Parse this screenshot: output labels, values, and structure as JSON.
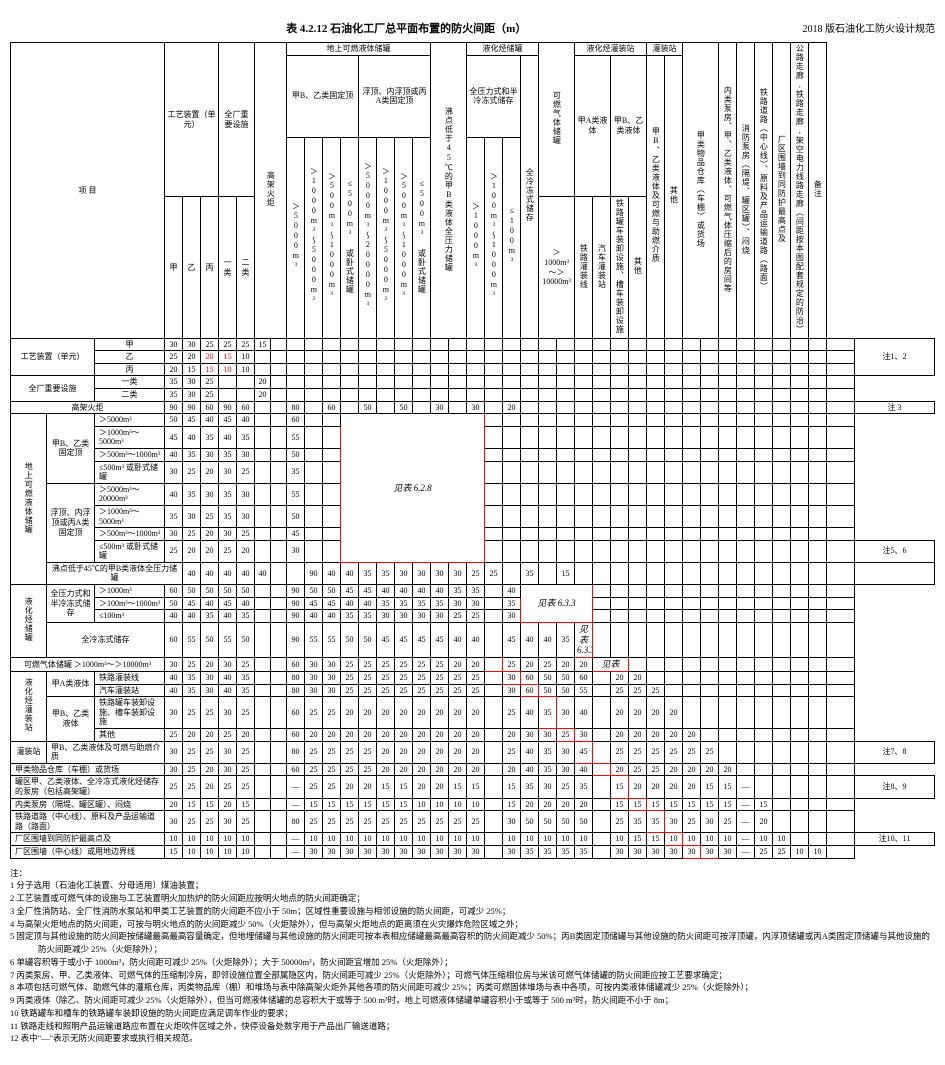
{
  "title": "表 4.2.12  石油化工厂总平面布置的防火间距（m）",
  "subtitle": "2018 版石油化工防火设计规范",
  "header": {
    "item": "项    目",
    "process_unit": "工艺装置（单元）",
    "important_facility": "全厂重要设施",
    "above_tank": "地上可燃液体储罐",
    "fixed_roof": "甲B、乙类固定顶",
    "float_roof": "浮顶、内浮顶或丙A类固定顶",
    "boil_tank": "沸点低于45℃的甲B类液体全压力储罐",
    "lpg_tank": "液化烃储罐",
    "full_pressure": "全压力式和半冷冻式储存",
    "full_refrig": "全冷冻式储存",
    "gas_tank": "可燃气体储罐",
    "lpg_bay": "液化烃灌装站",
    "loading": "灌装站",
    "rail_road": "通用铁路（中心线）",
    "boundary": "厂区围墙（中心线）或用地边界线",
    "cat_a": "甲",
    "cat_b": "乙",
    "cat_c": "丙",
    "cat_1": "一类",
    "cat_2": "二类",
    "gt5000": "＞5000m³",
    "r1000_5000": "＞1000m³～5000m³",
    "r500_1000": "＞500m³～1000m³",
    "le500s": "≤500m³ 或卧式储罐",
    "r5000_20000": "＞5000m³～20000m³",
    "r1000_5000b": "＞1000m³～5000m³",
    "r500_1000b": "＞500m³～1000m³",
    "le500sb": "≤500m³ 或卧式储罐",
    "gt1000": "＞1000m³",
    "r100_1000": "＞100m³～1000m³",
    "le100": "≤100m³",
    "gt10000": "＞1000m³～＞10000m³",
    "fill_a": "甲A类液体",
    "fill_b": "甲B、乙类液体",
    "rail_fill": "铁路灌装线",
    "car_fill": "汽车灌装站",
    "rail_fac": "铁路罐车装卸设施、槽车装卸设施",
    "other": "其他",
    "product_wh": "甲、乙类物品库房、丙类液体罐车装卸设施等",
    "class_wh": "甲类物品仓库（车棚）或货场",
    "tank_area": "罐区甲、乙类液体、全冷冻式液化烃储存的泵房（包括高架罐）",
    "fire_stn": "消防泵房（隔堤、罐区罐）、闷烧",
    "rail_center": "铁路道路（中心线）、原料及产品运输道路（路面）",
    "road_center": "厂区围墙到同防护最高点及",
    "notes_col": "备注",
    "note_12": "注1、2",
    "note_3": "注 3",
    "note_56": "注5、6",
    "note_78": "注7、8",
    "note_89": "注8、9",
    "note_1011": "注10、11",
    "lane_hw": "公路走廊,铁路走廊,架空电力线路走廊（间距按本图配套规定的防治）",
    "internal": "内类泵房、甲、乙类液体、可燃气体压缩后的房间等",
    "flare": "高架火炬",
    "ref_628": "见表 6.2.8",
    "ref_633": "见表 6.3.3",
    "ref_633b": "见表 6.3.3",
    "ref_tb": "见表"
  },
  "row_labels": {
    "r1": "工艺装置（单元）",
    "r1a": "甲",
    "r1b": "乙",
    "r1c": "丙",
    "r2": "全厂重要设施",
    "r2a": "一类",
    "r2b": "二类",
    "r3": "高架火炬",
    "r4": "地上可燃液体储罐",
    "r4g1": "甲B、乙类固定顶",
    "r4g2": "浮顶、内浮顶或丙A类固定顶",
    "r5": "沸点低于45℃的甲B类液体全压力储罐",
    "r6": "液化烃储罐",
    "r6g1": "全压力式和半冷冻式储存",
    "r6g2": "全冷冻式储存",
    "r7": "可燃气体储罐  ＞1000m³～＞10000m³",
    "r8": "液化烃灌装站",
    "r8a": "甲A类液体",
    "r8a1": "铁路灌装线",
    "r8a2": "汽车灌装站",
    "r8b": "甲B、乙类液体",
    "r8b1": "铁路罐车装卸设施、槽车装卸设施",
    "r8b2": "其他",
    "r9": "灌装站",
    "r9a": "甲B、乙类液体及可燃与助燃介质",
    "r10": "甲类物品仓库（车棚）或货场",
    "r11": "罐区甲、乙类液体、全冷冻式液化烃储存的泵房（包括高架罐）",
    "r12": "内类泵房（隔堤、罐区罐）、闷烧",
    "r13": "铁路道路（中心线）、原料及产品运输道路（路面）",
    "r14": "厂区围墙到同防护最高点及",
    "r15": "厂区围墙（中心线）或用地边界线"
  },
  "grid": [
    [
      "30",
      "30",
      "25",
      "25",
      "25",
      "15",
      "",
      "",
      "",
      "",
      "",
      "",
      "",
      "",
      "",
      "",
      "",
      "",
      "",
      "",
      "",
      "",
      "",
      "",
      "",
      "",
      "",
      "",
      "",
      "",
      "",
      "",
      "",
      "",
      "",
      "",
      "",
      ""
    ],
    [
      "25",
      "20",
      "20",
      "15",
      "10",
      "",
      "",
      "",
      "",
      "",
      "",
      "",
      "",
      "",
      "",
      "",
      "",
      "",
      "",
      "",
      "",
      "",
      "",
      "",
      "",
      "",
      "",
      "",
      "",
      "",
      "",
      "",
      "",
      "",
      "",
      "",
      "",
      ""
    ],
    [
      "20",
      "15",
      "15",
      "10",
      "10",
      "",
      "",
      "",
      "",
      "",
      "",
      "",
      "",
      "",
      "",
      "",
      "",
      "",
      "",
      "",
      "",
      "",
      "",
      "",
      "",
      "",
      "",
      "",
      "",
      "",
      "",
      "",
      "",
      "",
      "",
      "",
      "",
      ""
    ],
    [
      "35",
      "30",
      "25",
      "",
      "",
      "20",
      "",
      "",
      "",
      "",
      "",
      "",
      "",
      "",
      "",
      "",
      "",
      "",
      "",
      "",
      "",
      "",
      "",
      "",
      "",
      "",
      "",
      "",
      "",
      "",
      "",
      "",
      "",
      "",
      "",
      "",
      "",
      ""
    ],
    [
      "35",
      "30",
      "25",
      "",
      "",
      "20",
      "",
      "",
      "",
      "",
      "",
      "",
      "",
      "",
      "",
      "",
      "",
      "",
      "",
      "",
      "",
      "",
      "",
      "",
      "",
      "",
      "",
      "",
      "",
      "",
      "",
      "",
      "",
      "",
      "",
      "",
      "",
      ""
    ],
    [
      "90",
      "90",
      "60",
      "90",
      "60",
      "",
      "",
      "80",
      "",
      "60",
      "",
      "50",
      "",
      "50",
      "",
      "30",
      "",
      "30",
      "",
      "20",
      "",
      "",
      "",
      "",
      "",
      "",
      "",
      "",
      "",
      "",
      "",
      "",
      "",
      "",
      "",
      "",
      "",
      ""
    ],
    [
      "50",
      "45",
      "40",
      "45",
      "40",
      "",
      "",
      "60",
      "",
      "",
      "",
      "",
      "",
      "",
      "",
      "",
      "",
      "",
      "",
      "",
      "",
      "",
      "",
      "",
      "",
      "",
      "",
      "",
      "",
      "",
      "",
      "",
      "",
      "",
      "",
      "",
      "",
      ""
    ],
    [
      "45",
      "40",
      "35",
      "40",
      "35",
      "",
      "",
      "55",
      "",
      "",
      "",
      "",
      "",
      "",
      "",
      "",
      "",
      "",
      "",
      "",
      "",
      "",
      "",
      "",
      "",
      "",
      "",
      "",
      "",
      "",
      "",
      "",
      "",
      "",
      "",
      "",
      "",
      ""
    ],
    [
      "40",
      "35",
      "30",
      "35",
      "30",
      "",
      "",
      "50",
      "",
      "",
      "",
      "",
      "",
      "",
      "",
      "",
      "",
      "",
      "",
      "",
      "",
      "",
      "",
      "",
      "",
      "",
      "",
      "",
      "",
      "",
      "",
      "",
      "",
      "",
      "",
      "",
      "",
      ""
    ],
    [
      "30",
      "25",
      "20",
      "30",
      "25",
      "",
      "",
      "35",
      "",
      "",
      "",
      "",
      "",
      "",
      "",
      "",
      "",
      "",
      "",
      "",
      "",
      "",
      "",
      "",
      "",
      "",
      "",
      "",
      "",
      "",
      "",
      "",
      "",
      "",
      "",
      "",
      "",
      ""
    ],
    [
      "40",
      "35",
      "30",
      "35",
      "30",
      "",
      "",
      "55",
      "",
      "",
      "",
      "",
      "",
      "",
      "",
      "",
      "",
      "",
      "",
      "",
      "",
      "",
      "",
      "",
      "",
      "",
      "",
      "",
      "",
      "",
      "",
      "",
      "",
      "",
      "",
      "",
      "",
      ""
    ],
    [
      "35",
      "30",
      "25",
      "35",
      "30",
      "",
      "",
      "50",
      "",
      "",
      "",
      "",
      "",
      "",
      "",
      "",
      "",
      "",
      "",
      "",
      "",
      "",
      "",
      "",
      "",
      "",
      "",
      "",
      "",
      "",
      "",
      "",
      "",
      "",
      "",
      "",
      "",
      ""
    ],
    [
      "30",
      "25",
      "20",
      "30",
      "25",
      "",
      "",
      "45",
      "",
      "",
      "",
      "",
      "",
      "",
      "",
      "",
      "",
      "",
      "",
      "",
      "",
      "",
      "",
      "",
      "",
      "",
      "",
      "",
      "",
      "",
      "",
      "",
      "",
      "",
      "",
      "",
      "",
      ""
    ],
    [
      "25",
      "20",
      "20",
      "25",
      "20",
      "",
      "",
      "30",
      "",
      "",
      "",
      "",
      "",
      "",
      "",
      "",
      "",
      "",
      "",
      "",
      "",
      "",
      "",
      "",
      "",
      "",
      "",
      "",
      "",
      "",
      "",
      "",
      "",
      "",
      "",
      "",
      "",
      ""
    ],
    [
      "40",
      "40",
      "40",
      "40",
      "40",
      "",
      "",
      "90",
      "40",
      "40",
      "35",
      "35",
      "30",
      "30",
      "30",
      "30",
      "25",
      "25",
      "",
      "35",
      "",
      "15",
      "",
      "",
      "",
      "",
      "",
      "",
      "",
      "",
      "",
      "",
      "",
      "",
      "",
      "",
      "",
      ""
    ],
    [
      "60",
      "50",
      "50",
      "50",
      "50",
      "",
      "",
      "90",
      "50",
      "50",
      "45",
      "45",
      "40",
      "40",
      "40",
      "40",
      "35",
      "35",
      "",
      "40",
      "",
      "",
      "",
      "",
      "",
      "",
      "",
      "",
      "",
      "",
      "",
      "",
      "",
      "",
      "",
      "",
      "",
      ""
    ],
    [
      "50",
      "45",
      "40",
      "45",
      "40",
      "",
      "",
      "90",
      "45",
      "45",
      "40",
      "40",
      "35",
      "35",
      "35",
      "35",
      "30",
      "30",
      "",
      "35",
      "",
      "",
      "",
      "",
      "",
      "",
      "",
      "",
      "",
      "",
      "",
      "",
      "",
      "",
      "",
      "",
      "",
      ""
    ],
    [
      "40",
      "40",
      "35",
      "40",
      "35",
      "",
      "",
      "90",
      "40",
      "40",
      "35",
      "35",
      "30",
      "30",
      "30",
      "30",
      "25",
      "25",
      "",
      "30",
      "",
      "",
      "",
      "",
      "",
      "",
      "",
      "",
      "",
      "",
      "",
      "",
      "",
      "",
      "",
      "",
      "",
      ""
    ],
    [
      "60",
      "55",
      "50",
      "55",
      "50",
      "",
      "",
      "90",
      "55",
      "55",
      "50",
      "50",
      "45",
      "45",
      "45",
      "45",
      "40",
      "40",
      "",
      "45",
      "40",
      "40",
      "35",
      "",
      "",
      "",
      "",
      "",
      "",
      "",
      "",
      "",
      "",
      "",
      "",
      "",
      "",
      ""
    ],
    [
      "30",
      "25",
      "20",
      "30",
      "25",
      "",
      "",
      "60",
      "30",
      "30",
      "25",
      "25",
      "25",
      "25",
      "25",
      "25",
      "20",
      "20",
      "",
      "25",
      "20",
      "25",
      "20",
      "20",
      "",
      "20",
      "",
      "",
      "",
      "",
      "",
      "",
      "",
      "",
      "",
      "",
      "",
      ""
    ],
    [
      "40",
      "35",
      "30",
      "40",
      "35",
      "",
      "",
      "80",
      "30",
      "30",
      "25",
      "25",
      "25",
      "25",
      "25",
      "25",
      "25",
      "25",
      "",
      "30",
      "60",
      "50",
      "50",
      "60",
      "",
      "20",
      "20",
      "",
      "",
      "",
      "",
      "",
      "",
      "",
      "",
      "",
      "",
      ""
    ],
    [
      "40",
      "35",
      "30",
      "40",
      "35",
      "",
      "",
      "80",
      "30",
      "30",
      "25",
      "25",
      "25",
      "25",
      "25",
      "25",
      "25",
      "25",
      "",
      "30",
      "60",
      "50",
      "50",
      "55",
      "",
      "25",
      "25",
      "25",
      "",
      "",
      "",
      "",
      "",
      "",
      "",
      "",
      "",
      ""
    ],
    [
      "30",
      "25",
      "25",
      "30",
      "25",
      "",
      "",
      "60",
      "25",
      "25",
      "20",
      "20",
      "20",
      "20",
      "20",
      "20",
      "20",
      "20",
      "",
      "25",
      "40",
      "35",
      "30",
      "40",
      "",
      "20",
      "20",
      "20",
      "20",
      "",
      "",
      "",
      "",
      "",
      "",
      "",
      "",
      ""
    ],
    [
      "25",
      "20",
      "20",
      "25",
      "20",
      "",
      "",
      "60",
      "20",
      "20",
      "20",
      "20",
      "20",
      "20",
      "20",
      "20",
      "20",
      "20",
      "",
      "20",
      "30",
      "30",
      "25",
      "30",
      "",
      "20",
      "20",
      "20",
      "20",
      "20",
      "",
      "",
      "",
      "",
      "",
      "",
      "",
      ""
    ],
    [
      "30",
      "25",
      "25",
      "30",
      "25",
      "",
      "",
      "80",
      "25",
      "25",
      "25",
      "25",
      "20",
      "20",
      "20",
      "20",
      "20",
      "20",
      "",
      "25",
      "40",
      "35",
      "30",
      "45",
      "",
      "25",
      "25",
      "25",
      "25",
      "25",
      "25",
      "",
      "",
      "",
      "",
      "",
      "",
      ""
    ],
    [
      "30",
      "25",
      "20",
      "30",
      "25",
      "",
      "",
      "60",
      "25",
      "25",
      "25",
      "25",
      "20",
      "20",
      "20",
      "20",
      "20",
      "20",
      "",
      "20",
      "40",
      "35",
      "30",
      "40",
      "",
      "20",
      "25",
      "25",
      "20",
      "20",
      "20",
      "20",
      "",
      "",
      "",
      "",
      "",
      ""
    ],
    [
      "25",
      "25",
      "20",
      "25",
      "25",
      "",
      "",
      "—",
      "25",
      "25",
      "20",
      "20",
      "15",
      "15",
      "20",
      "20",
      "15",
      "15",
      "",
      "15",
      "35",
      "30",
      "25",
      "35",
      "",
      "15",
      "20",
      "20",
      "20",
      "20",
      "15",
      "15",
      "—",
      "",
      "",
      "",
      "",
      ""
    ],
    [
      "20",
      "15",
      "15",
      "20",
      "15",
      "",
      "",
      "—",
      "15",
      "15",
      "15",
      "15",
      "15",
      "15",
      "10",
      "10",
      "10",
      "10",
      "",
      "15",
      "20",
      "20",
      "20",
      "20",
      "",
      "15",
      "15",
      "15",
      "15",
      "15",
      "15",
      "15",
      "—",
      "15",
      "",
      "",
      "",
      ""
    ],
    [
      "30",
      "25",
      "25",
      "30",
      "25",
      "",
      "",
      "80",
      "25",
      "25",
      "25",
      "25",
      "25",
      "25",
      "25",
      "25",
      "25",
      "25",
      "",
      "30",
      "50",
      "50",
      "50",
      "50",
      "",
      "25",
      "35",
      "35",
      "30",
      "25",
      "30",
      "25",
      "—",
      "20",
      "",
      "",
      "",
      ""
    ],
    [
      "10",
      "10",
      "10",
      "10",
      "10",
      "",
      "",
      "—",
      "10",
      "10",
      "10",
      "10",
      "10",
      "10",
      "10",
      "10",
      "10",
      "10",
      "",
      "10",
      "10",
      "10",
      "10",
      "10",
      "",
      "10",
      "15",
      "15",
      "10",
      "10",
      "10",
      "10",
      "—",
      "10",
      "10",
      "",
      "",
      ""
    ],
    [
      "15",
      "10",
      "10",
      "10",
      "10",
      "",
      "",
      "—",
      "30",
      "30",
      "30",
      "30",
      "30",
      "30",
      "30",
      "30",
      "30",
      "30",
      "",
      "30",
      "35",
      "35",
      "35",
      "35",
      "",
      "30",
      "30",
      "30",
      "30",
      "30",
      "30",
      "30",
      "—",
      "25",
      "25",
      "10",
      "10",
      ""
    ]
  ],
  "notes_label": "注：",
  "notes": [
    "1  分子选用〔石油化工装置、分母适用〕煤油装置；",
    "2  工艺装置或可燃气体的设施与工艺装置明火加热炉的防火间距应按明火地点的防火间距确定；",
    "3  全厂性消防站、全厂性消防水泵站和甲类工艺装置的防火间距不应小于 50m；区域性重要设施与相邻设施的防火间距，可减少 25%；",
    "4  与高架火炬地点的防火间距，可按与明火地点的防火间距减少 50%（火炬除外），但与高架火炬地点的距离须在火灾爆炸危险区域之外；",
    "5  固定顶与其他设施的防火间距按储罐最高最高容量确定，但地埋储罐与其他设施的防火间距可按本表相应储罐最高最高容积的防火间距减少 50%；丙B类固定顶储罐与其他设施的防火间距可按浮顶罐，内浮顶储罐或丙A类固定顶储罐与其他设施的防火间距减少 25%（火炬除外）；",
    "6  单罐容积等于或小于 1000m³，防火间距可减少 25%（火炬除外）；大于 50000m³，防火间距宜增加 25%（火炬除外）；",
    "7  丙类泵房、甲、乙类液体、可燃气体的压缩制冷房，即邻设施位置全部属隐区内，防火间距可减少 25%（火炬除外）；可燃气体压缩相位房与米该可燃气体储罐的防火间距应按工艺要求确定；",
    "8  本项包括可燃气体、助燃气体的灌瓶仓库，丙类物品库（棚）和堆场与表中除高架火炬外其他各项的防火间距可减少 25%；丙类可燃固体堆场与表中各项，可按内类液体储罐减少 25%（火炬除外）；",
    "9  丙类液体（除乙、防火间距可减少 25%（火炬除外），但当可燃液体储罐的总容积大于或等于 500 m³时，地上可燃液体储罐单罐容积小于或等于 500 m³时，防火间距不小于 8m；",
    "10  铁路罐车和槽车的铁路罐车装卸设施的防火间距应满足调车作业的要求；",
    "11  铁路走线和照明产品运输道路应布置在火炬吹件区域之外，快停设备处数字用于产品出厂输送道路；",
    "12  表中\"—\"表示无防火间距要求或执行相关规范。"
  ],
  "colors": {
    "red": "#ff0000",
    "border": "#000000",
    "bg": "#ffffff"
  }
}
